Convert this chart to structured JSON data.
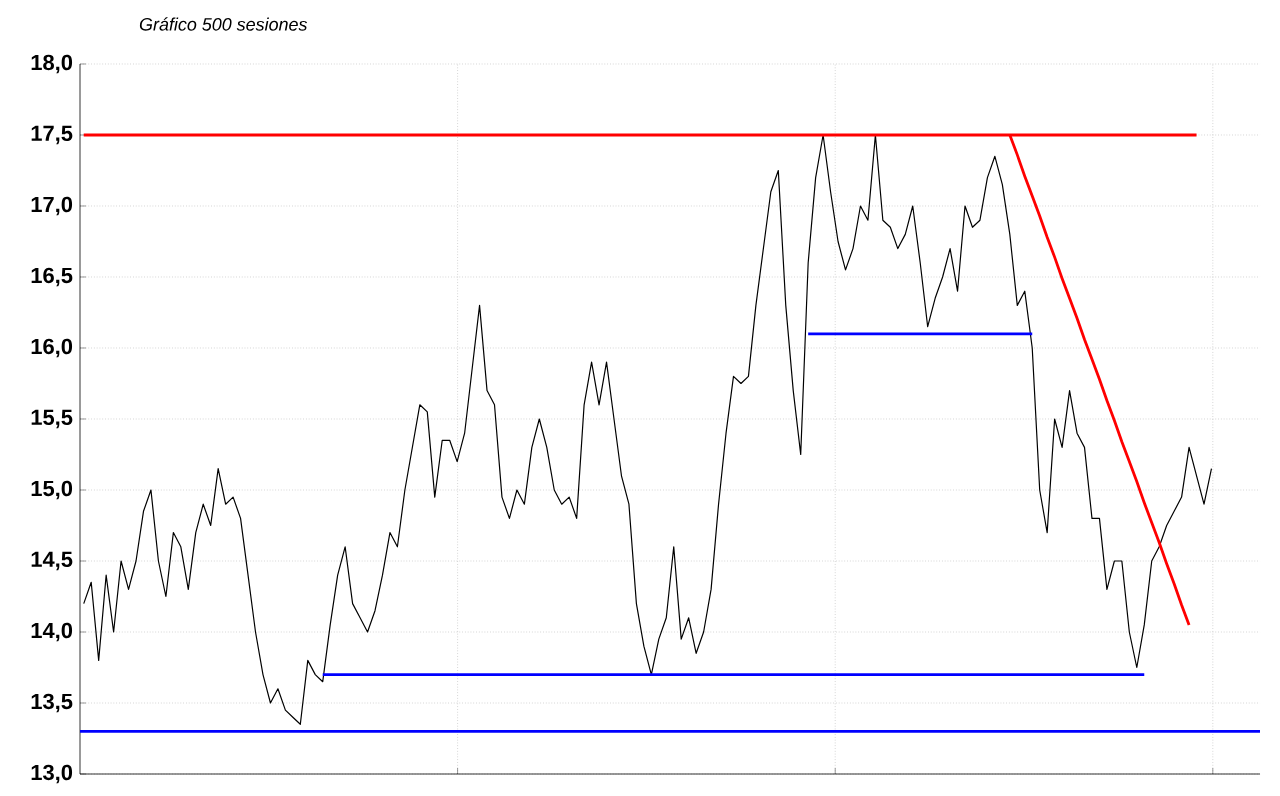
{
  "chart_data": {
    "type": "line",
    "subtitle": "Gráfico 500 sesiones",
    "categories": [
      null,
      null,
      null,
      null,
      null,
      null,
      null,
      null,
      null,
      null,
      null,
      null,
      null,
      null,
      null,
      null,
      null,
      null,
      null,
      null,
      null,
      null,
      null,
      null,
      null,
      null,
      null,
      null,
      null,
      null,
      null,
      null,
      null,
      null,
      null,
      null,
      null,
      null,
      null,
      null,
      null,
      null,
      null,
      null,
      null,
      null,
      null,
      null,
      null,
      null,
      null,
      null,
      null,
      null,
      null,
      null,
      null,
      null,
      null,
      null,
      null,
      null,
      null,
      null,
      null,
      null,
      null,
      null,
      null,
      null,
      null,
      null,
      null,
      null,
      null,
      null,
      null,
      null,
      null,
      null,
      null,
      null,
      null,
      null,
      null,
      null,
      null,
      null,
      null,
      null,
      null,
      null,
      null,
      null,
      null,
      null,
      null,
      null,
      null,
      null,
      null,
      null,
      null,
      null,
      null,
      null,
      null,
      null,
      null,
      null,
      null,
      null,
      null,
      null,
      null,
      null,
      null,
      null,
      null,
      null,
      null,
      null,
      null,
      null,
      null,
      null,
      null,
      null,
      null,
      null,
      null,
      null,
      null,
      null,
      null,
      null,
      null,
      null,
      null,
      null,
      null,
      null,
      null,
      null,
      null,
      null,
      null,
      null,
      null,
      null,
      null,
      null
    ],
    "ylim": [
      13,
      18
    ],
    "yticks": [
      {
        "value": 13,
        "label": "13,0"
      },
      {
        "value": 13.5,
        "label": "13,5"
      },
      {
        "value": 14,
        "label": "14,0"
      },
      {
        "value": 14.5,
        "label": "14,5"
      },
      {
        "value": 15,
        "label": "15,0"
      },
      {
        "value": 15.5,
        "label": "15,5"
      },
      {
        "value": 16,
        "label": "16,0"
      },
      {
        "value": 16.5,
        "label": "16,5"
      },
      {
        "value": 17,
        "label": "17,0"
      },
      {
        "value": 17.5,
        "label": "17,5"
      },
      {
        "value": 18,
        "label": "18,0"
      }
    ],
    "grid": true,
    "tick_labels": "y",
    "marker": "none",
    "line_style": "solid",
    "ref_lines": [
      {
        "axis": "y",
        "value": 13.3,
        "color": "#0000ff"
      }
    ],
    "series": [
      {
        "color": "#000000",
        "values": [
          14.2,
          14.35,
          13.8,
          14.4,
          14.0,
          14.5,
          14.3,
          14.5,
          14.85,
          15.0,
          14.5,
          14.25,
          14.7,
          14.6,
          14.3,
          14.7,
          14.9,
          14.75,
          15.15,
          14.9,
          14.95,
          14.8,
          14.4,
          14.0,
          13.7,
          13.5,
          13.6,
          13.45,
          13.4,
          13.35,
          13.8,
          13.7,
          13.65,
          14.05,
          14.4,
          14.6,
          14.2,
          14.1,
          14.0,
          14.15,
          14.4,
          14.7,
          14.6,
          15.0,
          15.3,
          15.6,
          15.55,
          14.95,
          15.35,
          15.35,
          15.2,
          15.4,
          15.85,
          16.3,
          15.7,
          15.6,
          14.95,
          14.8,
          15.0,
          14.9,
          15.3,
          15.5,
          15.3,
          15.0,
          14.9,
          14.95,
          14.8,
          15.6,
          15.9,
          15.6,
          15.9,
          15.5,
          15.1,
          14.9,
          14.2,
          13.9,
          13.7,
          13.95,
          14.1,
          14.6,
          13.95,
          14.1,
          13.85,
          14.0,
          14.3,
          14.9,
          15.4,
          15.8,
          15.75,
          15.8,
          16.3,
          16.7,
          17.1,
          17.25,
          16.3,
          15.7,
          15.25,
          16.6,
          17.2,
          17.5,
          17.1,
          16.75,
          16.55,
          16.7,
          17.0,
          16.9,
          17.5,
          16.9,
          16.85,
          16.7,
          16.8,
          17.0,
          16.6,
          16.15,
          16.35,
          16.5,
          16.7,
          16.4,
          17.0,
          16.85,
          16.9,
          17.2,
          17.35,
          17.15,
          16.8,
          16.3,
          16.4,
          16.0,
          15.0,
          14.7,
          15.5,
          15.3,
          15.7,
          15.4,
          15.3,
          14.8,
          14.8,
          14.3,
          14.5,
          14.5,
          14.0,
          13.75,
          14.05,
          14.5,
          14.6,
          14.75,
          14.85,
          14.95,
          15.3,
          15.1,
          14.9,
          15.15
        ]
      },
      {
        "color": "#ff0000",
        "values": [
          17.5,
          17.5,
          17.5,
          17.5,
          17.5,
          17.5,
          17.5,
          17.5,
          17.5,
          17.5,
          17.5,
          17.5,
          17.5,
          17.5,
          17.5,
          17.5,
          17.5,
          17.5,
          17.5,
          17.5,
          17.5,
          17.5,
          17.5,
          17.5,
          17.5,
          17.5,
          17.5,
          17.5,
          17.5,
          17.5,
          17.5,
          17.5,
          17.5,
          17.5,
          17.5,
          17.5,
          17.5,
          17.5,
          17.5,
          17.5,
          17.5,
          17.5,
          17.5,
          17.5,
          17.5,
          17.5,
          17.5,
          17.5,
          17.5,
          17.5,
          17.5,
          17.5,
          17.5,
          17.5,
          17.5,
          17.5,
          17.5,
          17.5,
          17.5,
          17.5,
          17.5,
          17.5,
          17.5,
          17.5,
          17.5,
          17.5,
          17.5,
          17.5,
          17.5,
          17.5,
          17.5,
          17.5,
          17.5,
          17.5,
          17.5,
          17.5,
          17.5,
          17.5,
          17.5,
          17.5,
          17.5,
          17.5,
          17.5,
          17.5,
          17.5,
          17.5,
          17.5,
          17.5,
          17.5,
          17.5,
          17.5,
          17.5,
          17.5,
          17.5,
          17.5,
          17.5,
          17.5,
          17.5,
          17.5,
          17.5,
          17.5,
          17.5,
          17.5,
          17.5,
          17.5,
          17.5,
          17.5,
          17.5,
          17.5,
          17.5,
          17.5,
          17.5,
          17.5,
          17.5,
          17.5,
          17.5,
          17.5,
          17.5,
          17.5,
          17.5,
          17.5,
          17.5,
          17.5,
          17.5,
          17.5,
          17.5,
          17.5,
          17.5,
          17.5,
          17.5,
          17.5,
          17.5,
          17.5,
          17.5,
          17.5,
          17.5,
          17.5,
          17.5,
          17.5,
          17.5,
          17.5,
          17.5,
          17.5,
          17.5,
          17.5,
          17.5,
          17.5,
          17.5,
          17.5,
          17.5,
          null,
          null
        ]
      },
      {
        "color": "#0000ff",
        "values": [
          null,
          null,
          null,
          null,
          null,
          null,
          null,
          null,
          null,
          null,
          null,
          null,
          null,
          null,
          null,
          null,
          null,
          null,
          null,
          null,
          null,
          null,
          null,
          null,
          null,
          null,
          null,
          null,
          null,
          null,
          null,
          null,
          null,
          null,
          null,
          null,
          null,
          null,
          null,
          null,
          null,
          null,
          null,
          null,
          null,
          null,
          null,
          null,
          null,
          null,
          null,
          null,
          null,
          null,
          null,
          null,
          null,
          null,
          null,
          null,
          null,
          null,
          null,
          null,
          null,
          null,
          null,
          null,
          null,
          null,
          null,
          null,
          null,
          null,
          null,
          null,
          null,
          null,
          null,
          null,
          null,
          null,
          null,
          null,
          null,
          null,
          null,
          null,
          null,
          null,
          null,
          null,
          null,
          null,
          null,
          null,
          null,
          16.1,
          16.1,
          16.1,
          16.1,
          16.1,
          16.1,
          16.1,
          16.1,
          16.1,
          16.1,
          16.1,
          16.1,
          16.1,
          16.1,
          16.1,
          16.1,
          16.1,
          16.1,
          16.1,
          16.1,
          16.1,
          16.1,
          16.1,
          16.1,
          16.1,
          16.1,
          16.1,
          16.1,
          16.1,
          16.1,
          16.1,
          null,
          null,
          null,
          null,
          null,
          null,
          null,
          null,
          null,
          null,
          null,
          null,
          null,
          null,
          null,
          null,
          null,
          null,
          null,
          null,
          null,
          null,
          null,
          null
        ]
      },
      {
        "color": "#0000ff",
        "values": [
          null,
          null,
          null,
          null,
          null,
          null,
          null,
          null,
          null,
          null,
          null,
          null,
          null,
          null,
          null,
          null,
          null,
          null,
          null,
          null,
          null,
          null,
          null,
          null,
          null,
          null,
          null,
          null,
          null,
          null,
          null,
          null,
          13.7,
          13.7,
          13.7,
          13.7,
          13.7,
          13.7,
          13.7,
          13.7,
          13.7,
          13.7,
          13.7,
          13.7,
          13.7,
          13.7,
          13.7,
          13.7,
          13.7,
          13.7,
          13.7,
          13.7,
          13.7,
          13.7,
          13.7,
          13.7,
          13.7,
          13.7,
          13.7,
          13.7,
          13.7,
          13.7,
          13.7,
          13.7,
          13.7,
          13.7,
          13.7,
          13.7,
          13.7,
          13.7,
          13.7,
          13.7,
          13.7,
          13.7,
          13.7,
          13.7,
          13.7,
          13.7,
          13.7,
          13.7,
          13.7,
          13.7,
          13.7,
          13.7,
          13.7,
          13.7,
          13.7,
          13.7,
          13.7,
          13.7,
          13.7,
          13.7,
          13.7,
          13.7,
          13.7,
          13.7,
          13.7,
          13.7,
          13.7,
          13.7,
          13.7,
          13.7,
          13.7,
          13.7,
          13.7,
          13.7,
          13.7,
          13.7,
          13.7,
          13.7,
          13.7,
          13.7,
          13.7,
          13.7,
          13.7,
          13.7,
          13.7,
          13.7,
          13.7,
          13.7,
          13.7,
          13.7,
          13.7,
          13.7,
          13.7,
          13.7,
          13.7,
          13.7,
          13.7,
          13.7,
          13.7,
          13.7,
          13.7,
          13.7,
          13.7,
          13.7,
          13.7,
          13.7,
          13.7,
          13.7,
          13.7,
          13.7,
          13.7,
          null,
          null,
          null,
          null,
          null,
          null,
          null,
          null,
          null
        ]
      },
      {
        "color": "#ff0000",
        "values": [
          null,
          null,
          null,
          null,
          null,
          null,
          null,
          null,
          null,
          null,
          null,
          null,
          null,
          null,
          null,
          null,
          null,
          null,
          null,
          null,
          null,
          null,
          null,
          null,
          null,
          null,
          null,
          null,
          null,
          null,
          null,
          null,
          null,
          null,
          null,
          null,
          null,
          null,
          null,
          null,
          null,
          null,
          null,
          null,
          null,
          null,
          null,
          null,
          null,
          null,
          null,
          null,
          null,
          null,
          null,
          null,
          null,
          null,
          null,
          null,
          null,
          null,
          null,
          null,
          null,
          null,
          null,
          null,
          null,
          null,
          null,
          null,
          null,
          null,
          null,
          null,
          null,
          null,
          null,
          null,
          null,
          null,
          null,
          null,
          null,
          null,
          null,
          null,
          null,
          null,
          null,
          null,
          null,
          null,
          null,
          null,
          null,
          null,
          null,
          null,
          null,
          null,
          null,
          null,
          null,
          null,
          null,
          null,
          null,
          null,
          null,
          null,
          null,
          null,
          null,
          null,
          null,
          null,
          null,
          null,
          null,
          null,
          null,
          null,
          17.5,
          17.36,
          17.21,
          17.07,
          16.93,
          16.78,
          16.64,
          16.49,
          16.35,
          16.21,
          16.06,
          15.92,
          15.78,
          15.63,
          15.49,
          15.34,
          15.2,
          15.06,
          14.91,
          14.77,
          14.63,
          14.48,
          14.34,
          14.19,
          14.05,
          null,
          null,
          null
        ]
      }
    ]
  }
}
